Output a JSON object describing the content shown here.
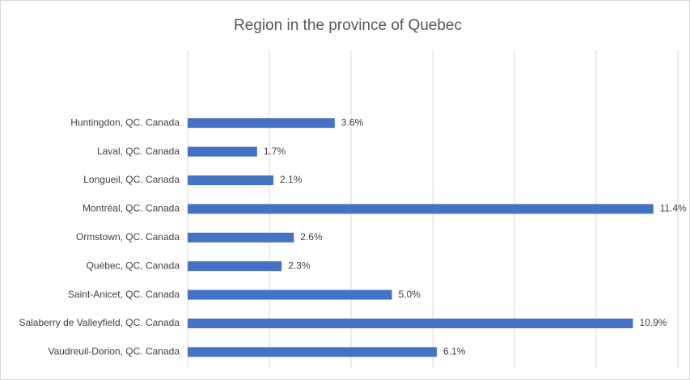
{
  "chart_data": {
    "type": "bar",
    "orientation": "horizontal",
    "title": "Region in the province of Quebec",
    "categories": [
      "Huntingdon, QC. Canada",
      "Laval, QC. Canada",
      "Longueil, QC. Canada",
      "Montréal, QC. Canada",
      "Ormstown, QC. Canada",
      "Québec, QC, Canada",
      "Saint-Anicet, QC. Canada",
      "Salaberry de Valleyfield, QC. Canada",
      "Vaudreuil-Dorion, QC. Canada"
    ],
    "values": [
      3.6,
      1.7,
      2.1,
      11.4,
      2.6,
      2.3,
      5.0,
      10.9,
      6.1
    ],
    "value_labels": [
      "3.6%",
      "1.7%",
      "2.1%",
      "11.4%",
      "2.6%",
      "2.3%",
      "5.0%",
      "10.9%",
      "6.1%"
    ],
    "color": "#4472c4",
    "xlim": [
      0,
      12
    ],
    "xticks": [
      0,
      2,
      4,
      6,
      8,
      10,
      12
    ],
    "grid": true
  }
}
